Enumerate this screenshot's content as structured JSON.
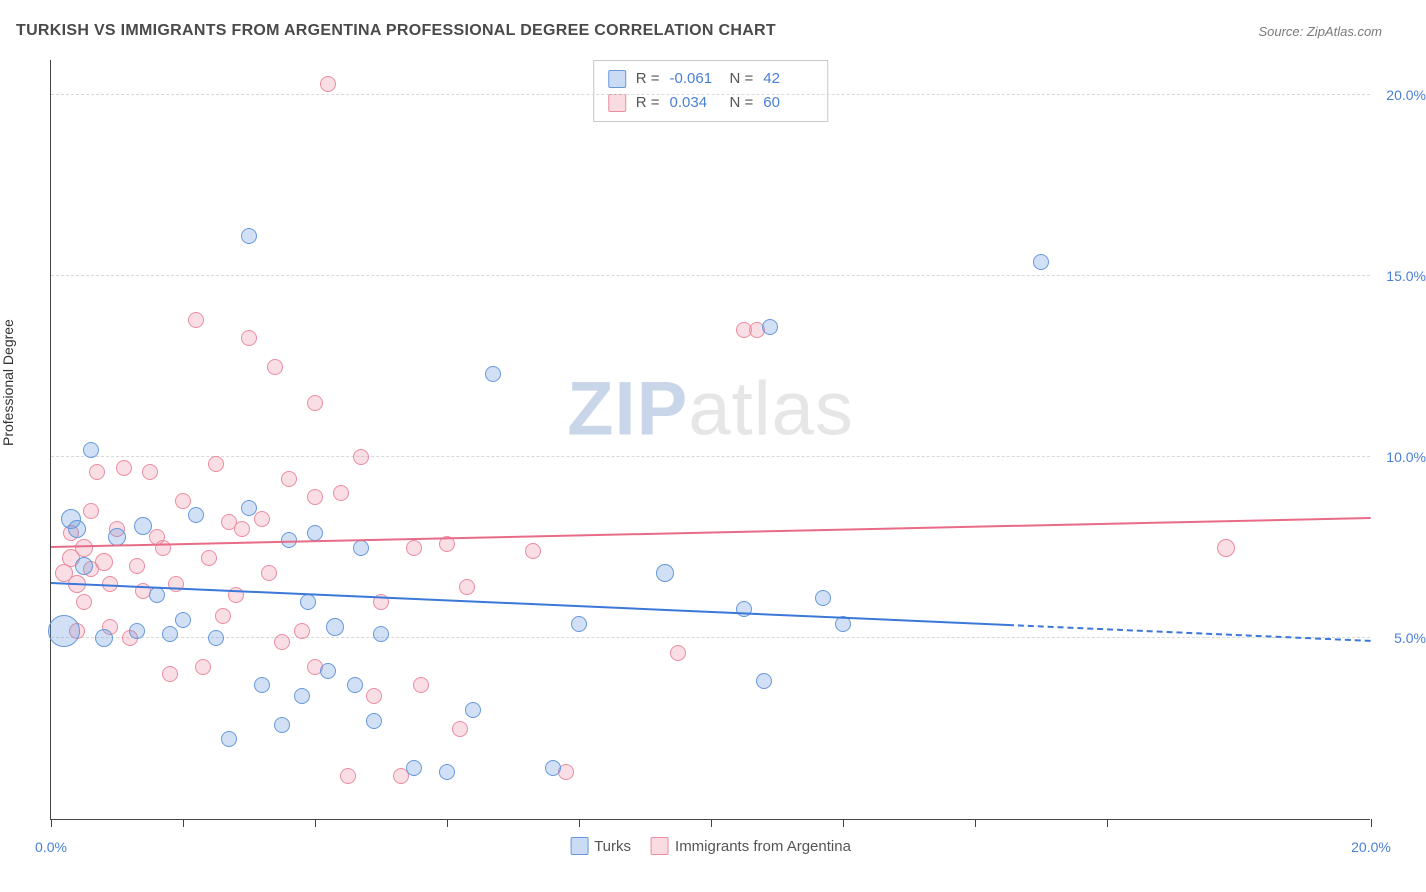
{
  "title": "TURKISH VS IMMIGRANTS FROM ARGENTINA PROFESSIONAL DEGREE CORRELATION CHART",
  "source": "Source: ZipAtlas.com",
  "ylabel": "Professional Degree",
  "watermark": {
    "zip": "ZIP",
    "atlas": "atlas"
  },
  "chart": {
    "type": "scatter",
    "xlim": [
      0,
      20
    ],
    "ylim": [
      0,
      21
    ],
    "x_ticks": [
      0,
      2,
      4,
      6,
      8,
      10,
      12,
      14,
      16,
      20
    ],
    "x_tick_labels": {
      "0": "0.0%",
      "20": "20.0%"
    },
    "y_gridlines": [
      5,
      10,
      15,
      20
    ],
    "y_tick_labels": [
      "5.0%",
      "10.0%",
      "15.0%",
      "20.0%"
    ],
    "background_color": "#ffffff",
    "grid_color": "#d8d8d8",
    "axis_color": "#444444",
    "label_color": "#4a7fd6"
  },
  "series": {
    "turks": {
      "label": "Turks",
      "fill": "rgba(102,153,220,0.30)",
      "stroke": "#6699dc",
      "marker_radius": 9,
      "points": [
        [
          0.2,
          5.2,
          16
        ],
        [
          0.3,
          8.3,
          10
        ],
        [
          0.4,
          8.0,
          9
        ],
        [
          0.6,
          10.2,
          8
        ],
        [
          0.5,
          7.0,
          9
        ],
        [
          0.8,
          5.0,
          9
        ],
        [
          1.0,
          7.8,
          9
        ],
        [
          1.3,
          5.2,
          8
        ],
        [
          1.4,
          8.1,
          9
        ],
        [
          1.6,
          6.2,
          8
        ],
        [
          1.8,
          5.1,
          8
        ],
        [
          2.2,
          8.4,
          8
        ],
        [
          2.5,
          5.0,
          8
        ],
        [
          2.7,
          2.2,
          8
        ],
        [
          3.0,
          16.1,
          8
        ],
        [
          3.2,
          3.7,
          8
        ],
        [
          3.5,
          2.6,
          8
        ],
        [
          3.6,
          7.7,
          8
        ],
        [
          3.8,
          3.4,
          8
        ],
        [
          3.9,
          6.0,
          8
        ],
        [
          4.0,
          7.9,
          8
        ],
        [
          4.3,
          5.3,
          9
        ],
        [
          4.6,
          3.7,
          8
        ],
        [
          4.7,
          7.5,
          8
        ],
        [
          4.9,
          2.7,
          8
        ],
        [
          5.0,
          5.1,
          8
        ],
        [
          5.5,
          1.4,
          8
        ],
        [
          6.0,
          1.3,
          8
        ],
        [
          6.4,
          3.0,
          8
        ],
        [
          6.7,
          12.3,
          8
        ],
        [
          7.6,
          1.4,
          8
        ],
        [
          8.0,
          5.4,
          8
        ],
        [
          9.3,
          6.8,
          9
        ],
        [
          10.5,
          5.8,
          8
        ],
        [
          10.8,
          3.8,
          8
        ],
        [
          10.9,
          13.6,
          8
        ],
        [
          11.7,
          6.1,
          8
        ],
        [
          12.0,
          5.4,
          8
        ],
        [
          15.0,
          15.4,
          8
        ],
        [
          3.0,
          8.6,
          8
        ],
        [
          2.0,
          5.5,
          8
        ],
        [
          4.2,
          4.1,
          8
        ]
      ]
    },
    "argentina": {
      "label": "Immigrants from Argentina",
      "fill": "rgba(235,140,160,0.28)",
      "stroke": "#eb8ca0",
      "marker_radius": 9,
      "points": [
        [
          0.2,
          6.8,
          9
        ],
        [
          0.3,
          7.2,
          9
        ],
        [
          0.4,
          6.5,
          9
        ],
        [
          0.5,
          7.5,
          9
        ],
        [
          0.6,
          6.9,
          8
        ],
        [
          0.7,
          9.6,
          8
        ],
        [
          0.8,
          7.1,
          9
        ],
        [
          0.9,
          5.3,
          8
        ],
        [
          1.0,
          8.0,
          8
        ],
        [
          1.1,
          9.7,
          8
        ],
        [
          1.3,
          7.0,
          8
        ],
        [
          1.4,
          6.3,
          8
        ],
        [
          1.5,
          9.6,
          8
        ],
        [
          1.6,
          7.8,
          8
        ],
        [
          1.8,
          4.0,
          8
        ],
        [
          1.9,
          6.5,
          8
        ],
        [
          2.0,
          8.8,
          8
        ],
        [
          2.2,
          13.8,
          8
        ],
        [
          2.4,
          7.2,
          8
        ],
        [
          2.5,
          9.8,
          8
        ],
        [
          2.7,
          8.2,
          8
        ],
        [
          2.8,
          6.2,
          8
        ],
        [
          2.9,
          8.0,
          8
        ],
        [
          3.0,
          13.3,
          8
        ],
        [
          3.2,
          8.3,
          8
        ],
        [
          3.4,
          12.5,
          8
        ],
        [
          3.6,
          9.4,
          8
        ],
        [
          3.8,
          5.2,
          8
        ],
        [
          4.0,
          11.5,
          8
        ],
        [
          4.0,
          8.9,
          8
        ],
        [
          4.0,
          4.2,
          8
        ],
        [
          4.2,
          20.3,
          8
        ],
        [
          4.4,
          9.0,
          8
        ],
        [
          4.5,
          1.2,
          8
        ],
        [
          4.7,
          10.0,
          8
        ],
        [
          4.9,
          3.4,
          8
        ],
        [
          5.0,
          6.0,
          8
        ],
        [
          5.3,
          1.2,
          8
        ],
        [
          5.5,
          7.5,
          8
        ],
        [
          5.6,
          3.7,
          8
        ],
        [
          6.0,
          7.6,
          8
        ],
        [
          6.2,
          2.5,
          8
        ],
        [
          6.3,
          6.4,
          8
        ],
        [
          7.3,
          7.4,
          8
        ],
        [
          7.8,
          1.3,
          8
        ],
        [
          9.5,
          4.6,
          8
        ],
        [
          10.5,
          13.5,
          8
        ],
        [
          10.7,
          13.5,
          8
        ],
        [
          0.4,
          5.2,
          8
        ],
        [
          0.6,
          8.5,
          8
        ],
        [
          1.2,
          5.0,
          8
        ],
        [
          2.3,
          4.2,
          8
        ],
        [
          3.3,
          6.8,
          8
        ],
        [
          3.5,
          4.9,
          8
        ],
        [
          0.5,
          6.0,
          8
        ],
        [
          0.9,
          6.5,
          8
        ],
        [
          1.7,
          7.5,
          8
        ],
        [
          2.6,
          5.6,
          8
        ],
        [
          17.8,
          7.5,
          9
        ],
        [
          0.3,
          7.9,
          8
        ]
      ]
    }
  },
  "trendlines": {
    "turks": {
      "color": "#3b78d8",
      "y_at_x0": 6.5,
      "y_at_x20": 4.9,
      "solid_until_x": 14.5
    },
    "argentina": {
      "color": "#e86b88",
      "y_at_x0": 7.5,
      "y_at_x20": 8.3,
      "solid_until_x": 20
    }
  },
  "stats": [
    {
      "series": "turks",
      "R_label": "R =",
      "R": "-0.061",
      "N_label": "N =",
      "N": "42"
    },
    {
      "series": "argentina",
      "R_label": "R =",
      "R": "0.034",
      "N_label": "N =",
      "N": "60"
    }
  ]
}
